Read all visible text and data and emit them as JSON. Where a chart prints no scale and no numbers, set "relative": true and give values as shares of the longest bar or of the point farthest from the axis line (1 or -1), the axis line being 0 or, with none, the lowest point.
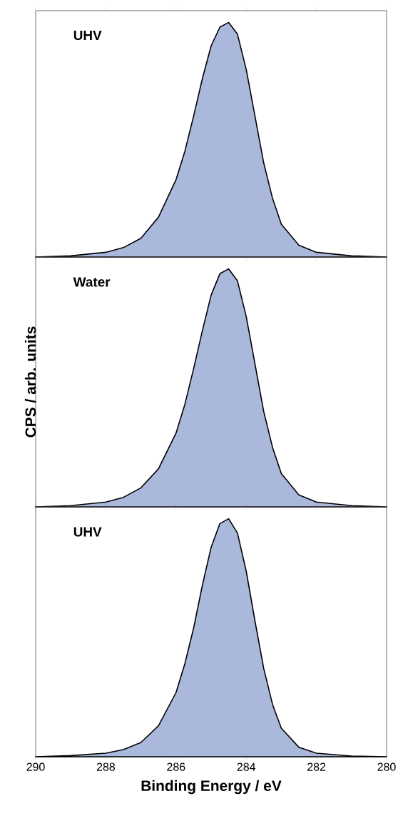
{
  "chart_data": [
    {
      "type": "area",
      "relative": true,
      "annotations": [
        "UHV"
      ],
      "xlim": [
        290,
        280
      ],
      "xticks": [
        290,
        288,
        286,
        284,
        282,
        280
      ],
      "tick_labels": false,
      "x": [
        290,
        289,
        288,
        287.5,
        287,
        286.5,
        286,
        285.75,
        285.5,
        285.25,
        285,
        284.75,
        284.5,
        284.25,
        284,
        283.75,
        283.5,
        283.25,
        283,
        282.5,
        282,
        281,
        280
      ],
      "series": [
        {
          "color": "#aab8dc",
          "values": [
            0,
            0.005,
            0.02,
            0.04,
            0.08,
            0.17,
            0.33,
            0.45,
            0.6,
            0.76,
            0.9,
            0.98,
            1.0,
            0.95,
            0.8,
            0.6,
            0.4,
            0.25,
            0.14,
            0.05,
            0.02,
            0.005,
            0
          ]
        }
      ]
    },
    {
      "type": "area",
      "relative": true,
      "ylabel": "CPS / arb. units",
      "annotations": [
        "Water"
      ],
      "xlim": [
        290,
        280
      ],
      "xticks": [
        290,
        288,
        286,
        284,
        282,
        280
      ],
      "tick_labels": false,
      "x": [
        290,
        289,
        288,
        287.5,
        287,
        286.5,
        286,
        285.75,
        285.5,
        285.25,
        285,
        284.75,
        284.5,
        284.25,
        284,
        283.75,
        283.5,
        283.25,
        283,
        282.5,
        282,
        281,
        280
      ],
      "series": [
        {
          "color": "#aab8dc",
          "values": [
            0,
            0.005,
            0.02,
            0.04,
            0.08,
            0.16,
            0.31,
            0.43,
            0.58,
            0.74,
            0.89,
            0.98,
            1.0,
            0.95,
            0.8,
            0.6,
            0.4,
            0.25,
            0.14,
            0.05,
            0.02,
            0.005,
            0
          ]
        }
      ]
    },
    {
      "type": "area",
      "relative": true,
      "xlabel": "Binding Energy / eV",
      "annotations": [
        "UHV"
      ],
      "xlim": [
        290,
        280
      ],
      "xticks": [
        290,
        288,
        286,
        284,
        282,
        280
      ],
      "tick_labels": "x",
      "x": [
        290,
        289,
        288,
        287.5,
        287,
        286.5,
        286,
        285.75,
        285.5,
        285.25,
        285,
        284.75,
        284.5,
        284.25,
        284,
        283.75,
        283.5,
        283.25,
        283,
        282.5,
        282,
        281,
        280
      ],
      "series": [
        {
          "color": "#aab8dc",
          "values": [
            0,
            0.005,
            0.015,
            0.03,
            0.06,
            0.13,
            0.27,
            0.39,
            0.54,
            0.72,
            0.88,
            0.98,
            1.0,
            0.94,
            0.78,
            0.57,
            0.37,
            0.22,
            0.12,
            0.04,
            0.015,
            0.003,
            0
          ]
        }
      ]
    }
  ]
}
